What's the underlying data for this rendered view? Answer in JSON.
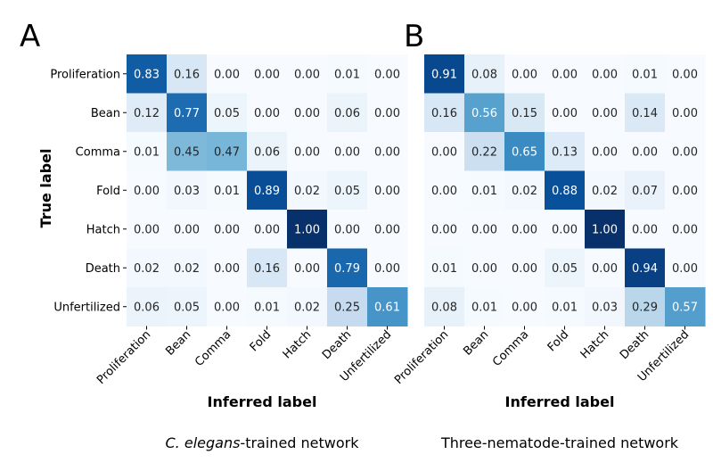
{
  "chart_data": [
    {
      "type": "heatmap",
      "panel_letter": "A",
      "caption_italic": "C. elegans",
      "caption_rest": "-trained network",
      "xlabel": "Inferred label",
      "ylabel": "True label",
      "x_categories": [
        "Proliferation",
        "Bean",
        "Comma",
        "Fold",
        "Hatch",
        "Death",
        "Unfertilized"
      ],
      "y_categories": [
        "Proliferation",
        "Bean",
        "Comma",
        "Fold",
        "Hatch",
        "Death",
        "Unfertilized"
      ],
      "values": [
        [
          0.83,
          0.16,
          0.0,
          0.0,
          0.0,
          0.01,
          0.0
        ],
        [
          0.12,
          0.77,
          0.05,
          0.0,
          0.0,
          0.06,
          0.0
        ],
        [
          0.01,
          0.45,
          0.47,
          0.06,
          0.0,
          0.0,
          0.0
        ],
        [
          0.0,
          0.03,
          0.01,
          0.89,
          0.02,
          0.05,
          0.0
        ],
        [
          0.0,
          0.0,
          0.0,
          0.0,
          1.0,
          0.0,
          0.0
        ],
        [
          0.02,
          0.02,
          0.0,
          0.16,
          0.0,
          0.79,
          0.0
        ],
        [
          0.06,
          0.05,
          0.0,
          0.01,
          0.02,
          0.25,
          0.61
        ]
      ],
      "colormap": "Blues",
      "value_range": [
        0,
        1
      ]
    },
    {
      "type": "heatmap",
      "panel_letter": "B",
      "caption_italic": "",
      "caption_rest": "Three-nematode-trained network",
      "xlabel": "Inferred label",
      "ylabel": "",
      "x_categories": [
        "Proliferation",
        "Bean",
        "Comma",
        "Fold",
        "Hatch",
        "Death",
        "Unfertilized"
      ],
      "y_categories": [],
      "values": [
        [
          0.91,
          0.08,
          0.0,
          0.0,
          0.0,
          0.01,
          0.0
        ],
        [
          0.16,
          0.56,
          0.15,
          0.0,
          0.0,
          0.14,
          0.0
        ],
        [
          0.0,
          0.22,
          0.65,
          0.13,
          0.0,
          0.0,
          0.0
        ],
        [
          0.0,
          0.01,
          0.02,
          0.88,
          0.02,
          0.07,
          0.0
        ],
        [
          0.0,
          0.0,
          0.0,
          0.0,
          1.0,
          0.0,
          0.0
        ],
        [
          0.01,
          0.0,
          0.0,
          0.05,
          0.0,
          0.94,
          0.0
        ],
        [
          0.08,
          0.01,
          0.0,
          0.01,
          0.03,
          0.29,
          0.57
        ]
      ],
      "colormap": "Blues",
      "value_range": [
        0,
        1
      ]
    }
  ]
}
